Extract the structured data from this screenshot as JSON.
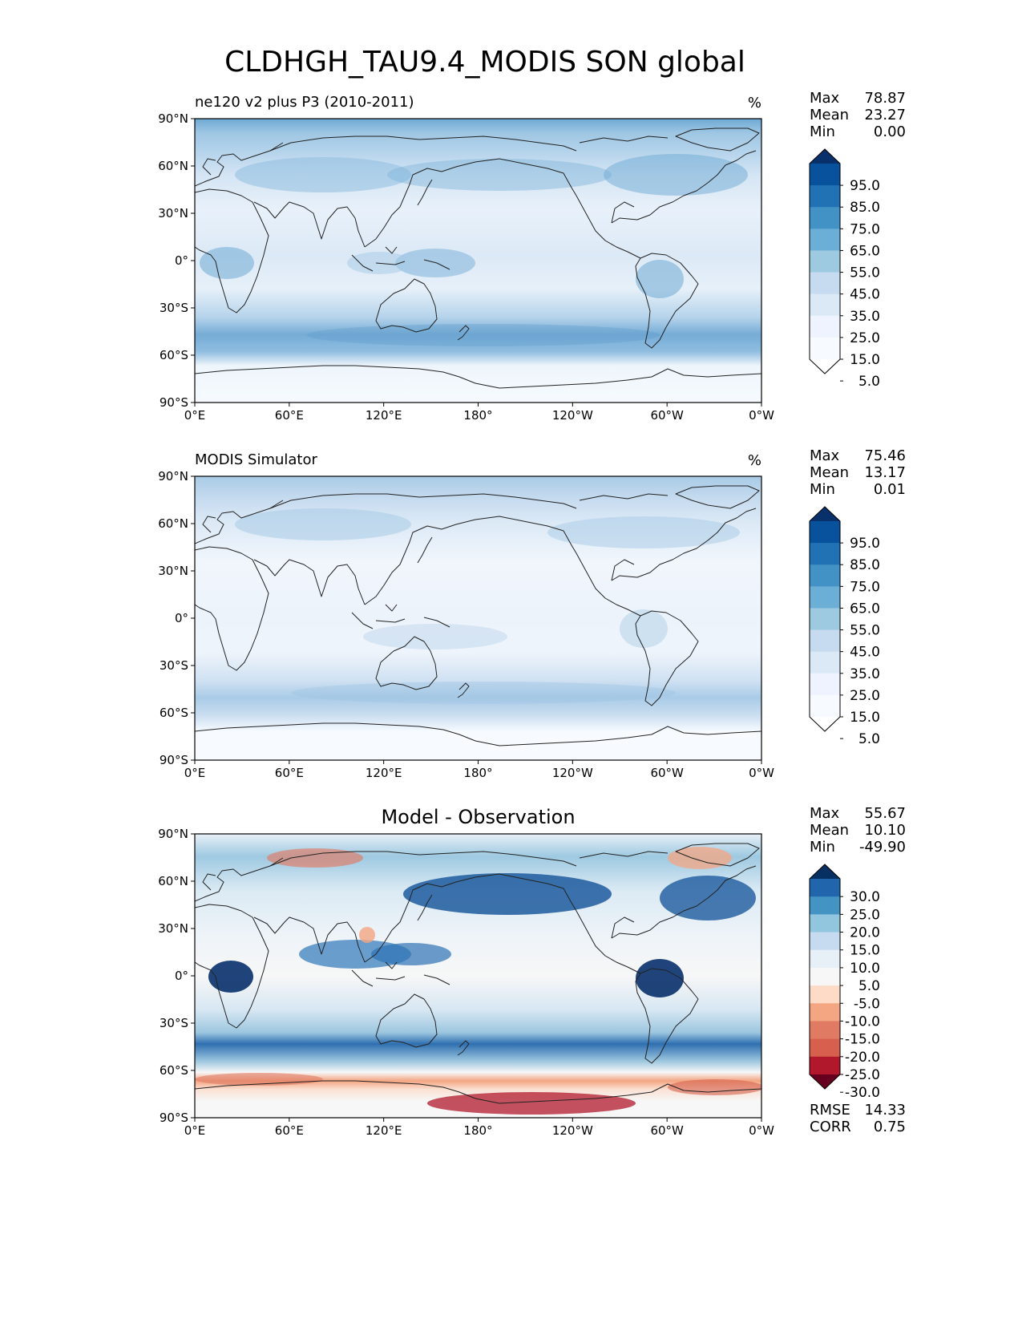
{
  "title": "CLDHGH_TAU9.4_MODIS SON global",
  "lat_ticks": [
    "90°N",
    "60°N",
    "30°N",
    "0°",
    "30°S",
    "60°S",
    "90°S"
  ],
  "lon_ticks": [
    "0°E",
    "60°E",
    "120°E",
    "180°",
    "120°W",
    "60°W",
    "0°W"
  ],
  "panels": [
    {
      "title": "ne120 v2 plus P3 (2010-2011)",
      "units": "%",
      "stats": [
        {
          "label": "Max",
          "value": "78.87"
        },
        {
          "label": "Mean",
          "value": "23.27"
        },
        {
          "label": "Min",
          "value": "0.00"
        }
      ],
      "colorbar": {
        "labels": [
          "95.0",
          "85.0",
          "75.0",
          "65.0",
          "55.0",
          "45.0",
          "35.0",
          "25.0",
          "15.0",
          "5.0"
        ],
        "colors": [
          "#08306b",
          "#08519c",
          "#2171b5",
          "#4292c6",
          "#6baed6",
          "#9ecae1",
          "#c6dbef",
          "#dbe9f6",
          "#eff3ff",
          "#f7fbff",
          "#ffffff"
        ]
      }
    },
    {
      "title": "MODIS Simulator",
      "units": "%",
      "stats": [
        {
          "label": "Max",
          "value": "75.46"
        },
        {
          "label": "Mean",
          "value": "13.17"
        },
        {
          "label": "Min",
          "value": "0.01"
        }
      ],
      "colorbar": {
        "labels": [
          "95.0",
          "85.0",
          "75.0",
          "65.0",
          "55.0",
          "45.0",
          "35.0",
          "25.0",
          "15.0",
          "5.0"
        ],
        "colors": [
          "#08306b",
          "#08519c",
          "#2171b5",
          "#4292c6",
          "#6baed6",
          "#9ecae1",
          "#c6dbef",
          "#dbe9f6",
          "#eff3ff",
          "#f7fbff",
          "#ffffff"
        ]
      }
    },
    {
      "title": "Model - Observation",
      "units": "",
      "stats": [
        {
          "label": "Max",
          "value": "55.67"
        },
        {
          "label": "Mean",
          "value": "10.10"
        },
        {
          "label": "Min",
          "value": "-49.90"
        }
      ],
      "colorbar": {
        "labels": [
          "30.0",
          "25.0",
          "20.0",
          "15.0",
          "10.0",
          "5.0",
          "-5.0",
          "-10.0",
          "-15.0",
          "-20.0",
          "-25.0",
          "-30.0"
        ],
        "colors": [
          "#053061",
          "#2166ac",
          "#4393c3",
          "#92c5de",
          "#c6dbef",
          "#e7f0f7",
          "#f7f7f7",
          "#fddbc7",
          "#f4a582",
          "#e07a63",
          "#d6604d",
          "#b2182b",
          "#67001f"
        ]
      },
      "footer": [
        {
          "label": "RMSE",
          "value": "14.33"
        },
        {
          "label": "CORR",
          "value": "0.75"
        }
      ]
    }
  ],
  "chart_data": {
    "type": "heatmap",
    "title": "CLDHGH_TAU9.4_MODIS SON global",
    "variable": "CLDHGH_TAU9.4_MODIS",
    "season": "SON",
    "panels": [
      {
        "name": "ne120 v2 plus P3 (2010-2011)",
        "units": "%",
        "max": 78.87,
        "mean": 23.27,
        "min": 0.0,
        "levels": [
          5,
          15,
          25,
          35,
          45,
          55,
          65,
          75,
          85,
          95
        ]
      },
      {
        "name": "MODIS Simulator",
        "units": "%",
        "max": 75.46,
        "mean": 13.17,
        "min": 0.01,
        "levels": [
          5,
          15,
          25,
          35,
          45,
          55,
          65,
          75,
          85,
          95
        ]
      },
      {
        "name": "Model - Observation",
        "max": 55.67,
        "mean": 10.1,
        "min": -49.9,
        "rmse": 14.33,
        "corr": 0.75,
        "levels": [
          -30,
          -25,
          -20,
          -15,
          -10,
          -5,
          5,
          10,
          15,
          20,
          25,
          30
        ]
      }
    ],
    "xlim": [
      0,
      360
    ],
    "ylim": [
      -90,
      90
    ]
  }
}
